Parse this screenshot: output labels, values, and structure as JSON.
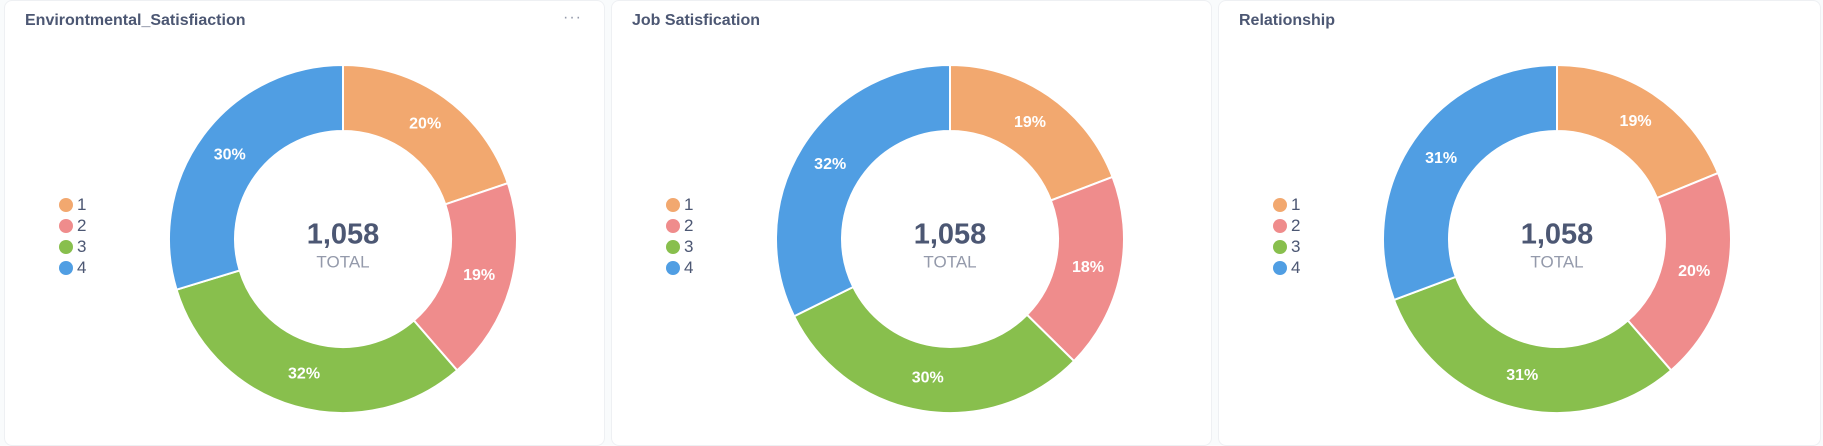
{
  "chart_data": [
    {
      "type": "pie",
      "title": "Environtmental_Satisfiaction",
      "categories": [
        "1",
        "2",
        "3",
        "4"
      ],
      "values": [
        20,
        19,
        32,
        30
      ],
      "labels": [
        "20%",
        "19%",
        "32%",
        "30%"
      ],
      "total": "1,058",
      "total_label": "TOTAL",
      "legend": "left"
    },
    {
      "type": "pie",
      "title": "Job Satisfication",
      "categories": [
        "1",
        "2",
        "3",
        "4"
      ],
      "values": [
        19,
        18,
        30,
        32
      ],
      "labels": [
        "19%",
        "18%",
        "30%",
        "32%"
      ],
      "total": "1,058",
      "total_label": "TOTAL",
      "legend": "left"
    },
    {
      "type": "pie",
      "title": "Relationship",
      "categories": [
        "1",
        "2",
        "3",
        "4"
      ],
      "values": [
        19,
        20,
        31,
        31
      ],
      "labels": [
        "19%",
        "20%",
        "31%",
        "31%"
      ],
      "total": "1,058",
      "total_label": "TOTAL",
      "legend": "left"
    }
  ],
  "colors": [
    "#f2a86f",
    "#ef8c8c",
    "#88bf4d",
    "#509ee3"
  ],
  "menu_icon": "ellipsis-icon",
  "menu_glyph": "···"
}
